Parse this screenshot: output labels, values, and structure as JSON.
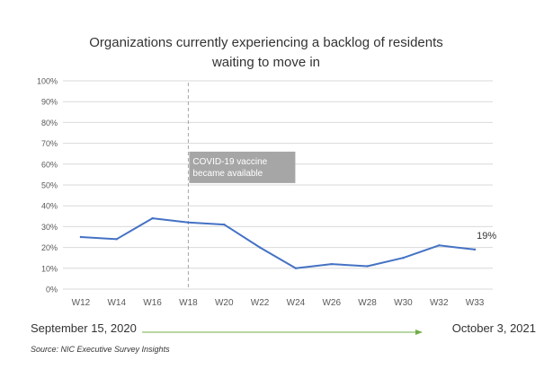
{
  "colors": {
    "line": "#4472C4",
    "grid": "#D9D9D9",
    "axis_text": "#595959",
    "annotation_bg": "#A6A6A6",
    "annotation_text": "#FFFFFF",
    "marker_line": "#A6A6A6",
    "timeline_arrow": "#70AD47",
    "title": "#333333"
  },
  "footer": {
    "start_date": "September 15, 2020",
    "end_date": "October 3, 2021",
    "source": "Source: NIC Executive Survey Insights"
  },
  "chart_data": {
    "type": "line",
    "title_lines": [
      "Organizations currently experiencing a backlog of residents",
      "waiting to move in"
    ],
    "categories": [
      "W12",
      "W14",
      "W16",
      "W18",
      "W20",
      "W22",
      "W24",
      "W26",
      "W28",
      "W30",
      "W32",
      "W33"
    ],
    "series": [
      {
        "values": [
          25,
          24,
          34,
          32,
          31,
          20,
          10,
          12,
          11,
          15,
          21,
          19
        ]
      }
    ],
    "y_ticks": [
      "0%",
      "10%",
      "20%",
      "30%",
      "40%",
      "50%",
      "60%",
      "70%",
      "80%",
      "90%",
      "100%"
    ],
    "ylim": [
      0,
      100
    ],
    "grid": true,
    "last_point_label": "19%",
    "annotation": {
      "category": "W18",
      "lines": [
        "COVID-19 vaccine",
        "became available"
      ]
    }
  }
}
